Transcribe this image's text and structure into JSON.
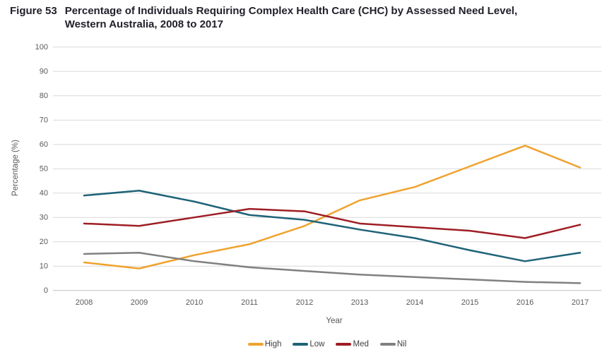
{
  "figure": {
    "label": "Figure 53",
    "title_line1": "Percentage of Individuals Requiring Complex Health Care (CHC) by Assessed Need Level,",
    "title_line2": "Western Australia, 2008 to 2017"
  },
  "chart_data": {
    "type": "line",
    "title": "Percentage of Individuals Requiring Complex Health Care (CHC) by Assessed Need Level, Western Australia, 2008 to 2017",
    "x": [
      2008,
      2009,
      2010,
      2011,
      2012,
      2013,
      2014,
      2015,
      2016,
      2017
    ],
    "series": [
      {
        "name": "High",
        "color": "#F0A22E",
        "values": [
          11.5,
          9,
          14.5,
          19,
          26.5,
          37,
          42.5,
          51,
          59.5,
          50.5
        ]
      },
      {
        "name": "Low",
        "color": "#1F6377",
        "values": [
          39,
          41,
          36.5,
          31,
          29,
          25,
          21.5,
          16.5,
          12,
          15.5
        ]
      },
      {
        "name": "Med",
        "color": "#9E1E25",
        "values": [
          27.5,
          26.5,
          30,
          33.5,
          32.5,
          27.5,
          26,
          24.5,
          21.5,
          27
        ]
      },
      {
        "name": "Nil",
        "color": "#808080",
        "values": [
          15,
          15.5,
          12,
          9.5,
          8,
          6.5,
          5.5,
          4.5,
          3.5,
          3
        ]
      }
    ],
    "xlabel": "Year",
    "ylabel": "Percentage (%)",
    "ylim": [
      0,
      100
    ],
    "ytick_step": 10,
    "grid": true,
    "legend_position": "bottom",
    "gridline_color": "#D9D9D9",
    "baseline_color": "#BFBFBF"
  }
}
